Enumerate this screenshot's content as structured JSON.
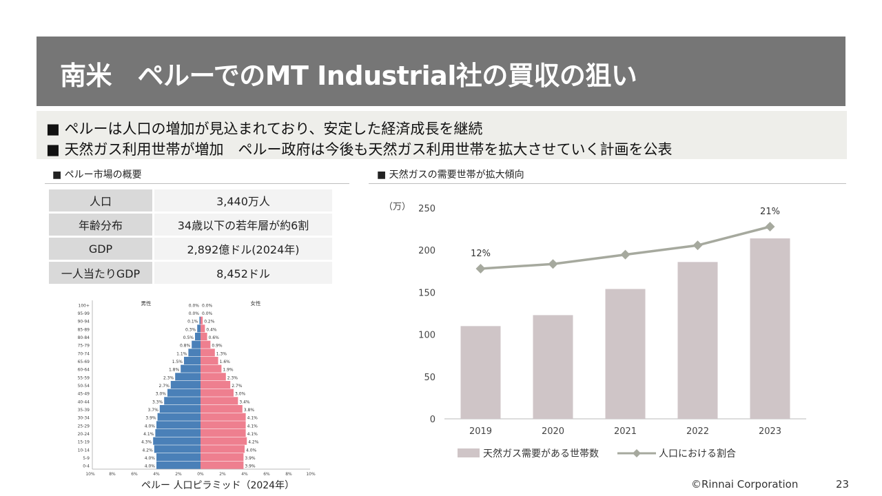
{
  "title": "南米　ペルーでのMT Industrial社の買収の狙い",
  "bullets": [
    "■ ペルーは人口の増加が見込まれており、安定した経済成長を継続",
    "■ 天然ガス利用世帯が増加　ペルー政府は今後も天然ガス利用世帯を拡大させていく計画を公表"
  ],
  "market_overview": {
    "heading": "■ ペルー市場の概要",
    "rows": [
      {
        "key": "人口",
        "value": "3,440万人"
      },
      {
        "key": "年齢分布",
        "value": "34歳以下の若年層が約6割"
      },
      {
        "key": "GDP",
        "value": "2,892億ドル(2024年)"
      },
      {
        "key": "一人当たりGDP",
        "value": "8,452ドル"
      }
    ]
  },
  "gas_section": {
    "heading": "■ 天然ガスの需要世帯が拡大傾向"
  },
  "footer": {
    "copyright": "©Rinnai Corporation",
    "page": "23"
  },
  "colors": {
    "bar": "#cfc5c7",
    "line": "#a6a99e",
    "male": "#4a80b8",
    "female": "#ee7f8f",
    "title_bg": "#767676"
  },
  "chart_data": [
    {
      "type": "bar",
      "title": "■ 天然ガスの需要世帯が拡大傾向",
      "ylabel": "（万）",
      "categories": [
        "2019",
        "2020",
        "2021",
        "2022",
        "2023"
      ],
      "ylim": [
        0,
        250
      ],
      "yticks": [
        0,
        50,
        100,
        150,
        200,
        250
      ],
      "series": [
        {
          "name": "天然ガス需要がある世帯数",
          "type": "bar",
          "values": [
            110,
            123,
            154,
            186,
            214
          ]
        },
        {
          "name": "人口における割合",
          "type": "line",
          "values": [
            12,
            13,
            15,
            17,
            21
          ],
          "unit": "%",
          "labels": {
            "0": "12%",
            "4": "21%"
          }
        }
      ],
      "legend": "bottom"
    },
    {
      "type": "bar",
      "orientation": "horizontal",
      "title": "ペルー 人口ピラミッド（2024年）",
      "left_label": "男性",
      "right_label": "女性",
      "categories": [
        "100+",
        "95-99",
        "90-94",
        "85-89",
        "80-84",
        "75-79",
        "70-74",
        "65-69",
        "60-64",
        "55-59",
        "50-54",
        "45-49",
        "40-44",
        "35-39",
        "30-34",
        "25-29",
        "20-24",
        "15-19",
        "10-14",
        "5-9",
        "0-4"
      ],
      "series": [
        {
          "name": "男性",
          "values": [
            0.0,
            0.0,
            0.1,
            0.3,
            0.5,
            0.8,
            1.1,
            1.5,
            1.8,
            2.3,
            2.7,
            3.0,
            3.3,
            3.7,
            3.9,
            4.0,
            4.1,
            4.3,
            4.2,
            4.0,
            4.0
          ],
          "labels": [
            "0.0%",
            "0.0%",
            "0.1%",
            "0.3%",
            "0.5%",
            "0.8%",
            "1.1%",
            "1.5%",
            "1.8%",
            "2.3%",
            "2.7%",
            "3.0%",
            "3.3%",
            "3.7%",
            "3.9%",
            "4.0%",
            "4.1%",
            "4.3%",
            "4.2%",
            "4.0%",
            "4.0%"
          ]
        },
        {
          "name": "女性",
          "values": [
            0.0,
            0.0,
            0.2,
            0.4,
            0.6,
            0.9,
            1.3,
            1.6,
            1.9,
            2.3,
            2.7,
            3.0,
            3.4,
            3.8,
            4.1,
            4.1,
            4.1,
            4.2,
            4.0,
            3.9,
            3.9
          ],
          "labels": [
            "0.0%",
            "0.0%",
            "0.2%",
            "0.4%",
            "0.6%",
            "0.9%",
            "1.3%",
            "1.6%",
            "1.9%",
            "2.3%",
            "2.7%",
            "3.0%",
            "3.4%",
            "3.8%",
            "4.1%",
            "4.1%",
            "4.1%",
            "4.2%",
            "4.0%",
            "3.9%",
            "3.9%"
          ]
        }
      ],
      "xticks": [
        "10%",
        "8%",
        "6%",
        "4%",
        "2%",
        "0%",
        "2%",
        "4%",
        "6%",
        "8%",
        "10%"
      ],
      "xlim": [
        -10,
        10
      ]
    }
  ]
}
